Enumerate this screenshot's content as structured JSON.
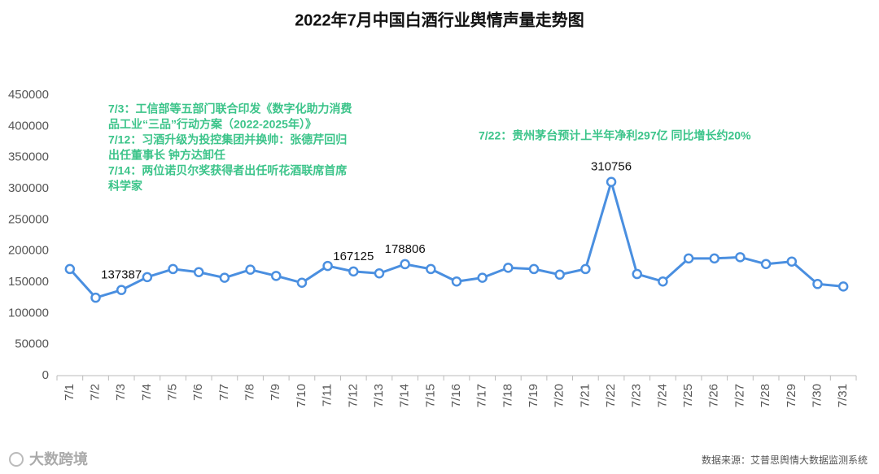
{
  "chart_data": {
    "type": "line",
    "title": "2022年7月中国白酒行业舆情声量走势图",
    "categories": [
      "7/1",
      "7/2",
      "7/3",
      "7/4",
      "7/5",
      "7/6",
      "7/7",
      "7/8",
      "7/9",
      "7/10",
      "7/11",
      "7/12",
      "7/13",
      "7/14",
      "7/15",
      "7/16",
      "7/17",
      "7/18",
      "7/19",
      "7/20",
      "7/21",
      "7/22",
      "7/23",
      "7/24",
      "7/25",
      "7/26",
      "7/27",
      "7/28",
      "7/29",
      "7/30",
      "7/31"
    ],
    "values": [
      171000,
      125000,
      137387,
      158000,
      171000,
      166000,
      157000,
      170000,
      160000,
      149000,
      176000,
      167125,
      164000,
      178806,
      171000,
      151000,
      157000,
      173000,
      171000,
      162000,
      171000,
      310756,
      163000,
      151000,
      188000,
      188000,
      190000,
      179000,
      183000,
      147000,
      143000
    ],
    "value_labels": [
      null,
      null,
      "137387",
      null,
      null,
      null,
      null,
      null,
      null,
      null,
      null,
      "167125",
      null,
      "178806",
      null,
      null,
      null,
      null,
      null,
      null,
      null,
      "310756",
      null,
      null,
      null,
      null,
      null,
      null,
      null,
      null,
      null
    ],
    "color": "#4a8fe0",
    "ylim": [
      0,
      450000
    ],
    "yticks": [
      0,
      50000,
      100000,
      150000,
      200000,
      250000,
      300000,
      350000,
      400000,
      450000
    ],
    "grid": false,
    "annotations": [
      {
        "lines": [
          "7/3：工信部等五部门联合印发《数字化助力消费",
          "品工业“三品”行动方案（2022-2025年）》",
          "7/12：习酒升级为投控集团并换帅：张德芹回归",
          "出任董事长 钟方达卸任",
          "7/14：两位诺贝尔奖获得者出任听花酒联席首席",
          "科学家"
        ]
      },
      {
        "lines": [
          "7/22：贵州茅台预计上半年净利297亿 同比增长约20%"
        ]
      }
    ],
    "annotation_color": "#3cc48a",
    "source": "数据来源：艾普思舆情大数据监测系统"
  },
  "logo": "大数跨境"
}
